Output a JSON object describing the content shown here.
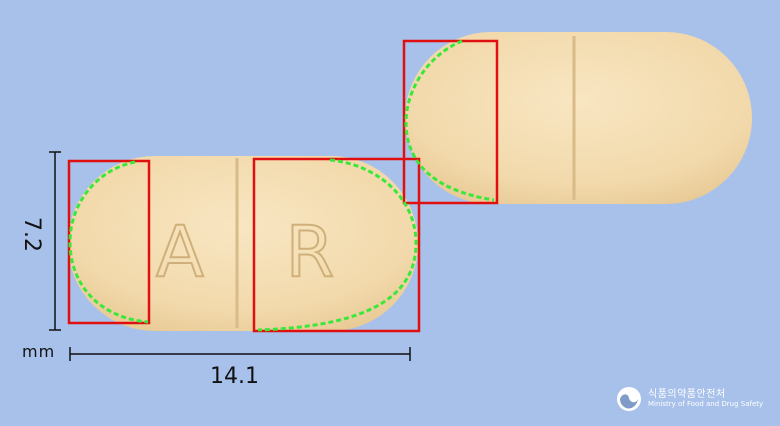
{
  "dimensions": {
    "length": "14.1",
    "width": "7.2",
    "unit": "mm"
  },
  "imprint": {
    "left": "A",
    "right": "R"
  },
  "watermark": {
    "korean": "식품의약품안전처",
    "english": "Ministry of Food and Drug Safety",
    "icon": "mfds-logo-icon"
  },
  "colors": {
    "background": "#a8c1ea",
    "tablet": "#f5dfb5",
    "box": "#e01010",
    "outline": "#39e83a"
  }
}
